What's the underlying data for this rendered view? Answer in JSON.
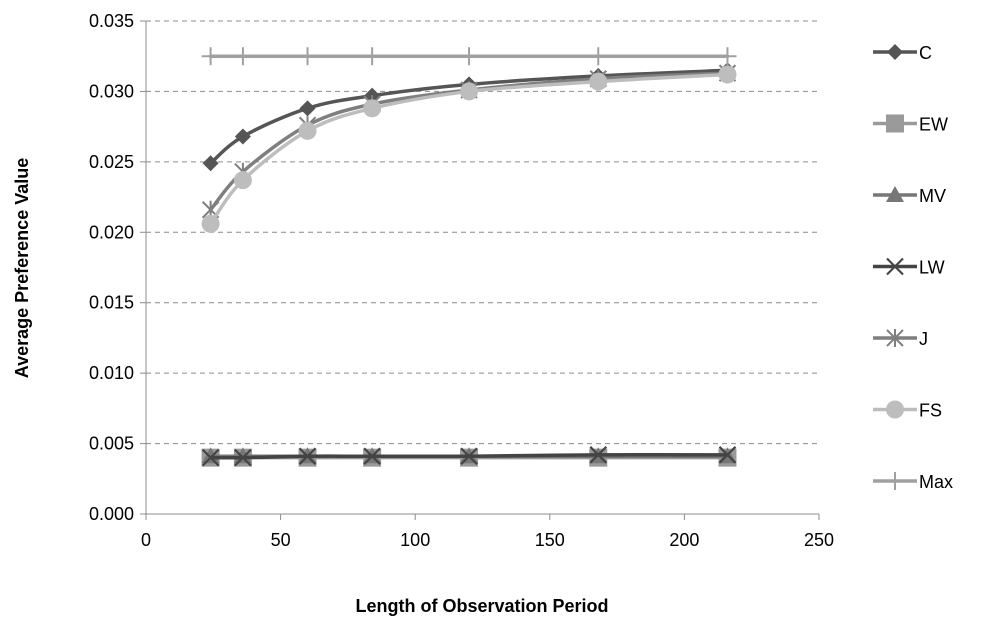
{
  "chart_data": {
    "type": "line",
    "title": "",
    "xlabel": "Length of Observation Period",
    "ylabel": "Average Preference Value",
    "xlim": [
      0,
      250
    ],
    "ylim": [
      0,
      0.035
    ],
    "xticks": [
      "0",
      "50",
      "100",
      "150",
      "200",
      "250"
    ],
    "yticks": [
      "0.000",
      "0.005",
      "0.010",
      "0.015",
      "0.020",
      "0.025",
      "0.030",
      "0.035"
    ],
    "grid": "horizontal dashed",
    "legend_position": "right",
    "x": [
      24,
      36,
      60,
      84,
      120,
      168,
      216
    ],
    "series": [
      {
        "name": "C",
        "marker": "diamond",
        "color": "#555555",
        "values": [
          0.0249,
          0.0268,
          0.0288,
          0.0297,
          0.0305,
          0.0311,
          0.0315
        ]
      },
      {
        "name": "EW",
        "marker": "square",
        "color": "#9a9a9a",
        "values": [
          0.004,
          0.004,
          0.004,
          0.004,
          0.004,
          0.004,
          0.004
        ]
      },
      {
        "name": "MV",
        "marker": "triangle",
        "color": "#777777",
        "values": [
          0.0041,
          0.0041,
          0.0041,
          0.0041,
          0.0041,
          0.0041,
          0.0041
        ]
      },
      {
        "name": "LW",
        "marker": "x",
        "color": "#444444",
        "values": [
          0.004,
          0.004,
          0.0041,
          0.0041,
          0.0041,
          0.0042,
          0.0042
        ]
      },
      {
        "name": "J",
        "marker": "asterisk",
        "color": "#7f7f7f",
        "values": [
          0.0216,
          0.0243,
          0.0276,
          0.0291,
          0.0301,
          0.0309,
          0.0313
        ]
      },
      {
        "name": "FS",
        "marker": "circle",
        "color": "#bdbdbd",
        "values": [
          0.0206,
          0.0237,
          0.0272,
          0.0288,
          0.03,
          0.0307,
          0.0312
        ]
      },
      {
        "name": "Max",
        "marker": "plus",
        "color": "#a0a0a0",
        "values": [
          0.0325,
          0.0325,
          0.0325,
          0.0325,
          0.0325,
          0.0325,
          0.0325
        ]
      }
    ]
  }
}
